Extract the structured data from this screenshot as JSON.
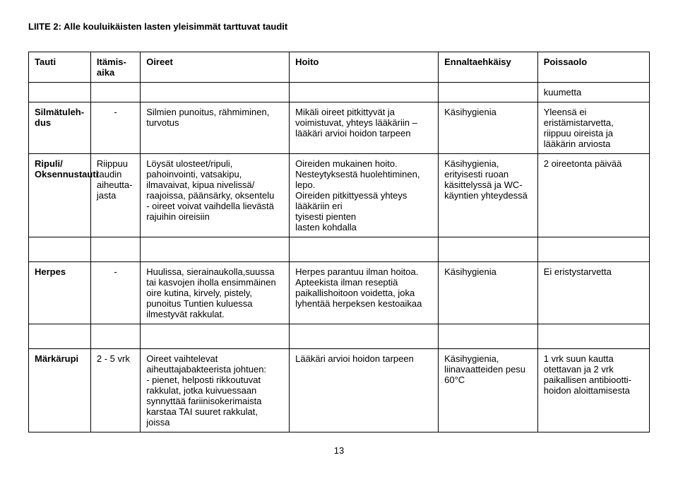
{
  "title": "LIITE 2: Alle kouluikäisten lasten yleisimmät tarttuvat taudit",
  "headers": {
    "c1": "Tauti",
    "c2": "Itämis-aika",
    "c3": "Oireet",
    "c4": "Hoito",
    "c5": "Ennaltaehkäisy",
    "c6": "Poissaolo"
  },
  "kuumetta": "kuumetta",
  "rows": {
    "r1": {
      "c1": "Silmätuleh-dus",
      "c2": "-",
      "c3": "Silmien punoitus, rähmiminen, turvotus",
      "c4": "Mikäli oireet pitkittyvät ja voimistuvat, yhteys lääkäriin – lääkäri arvioi hoidon tarpeen",
      "c5": "Käsihygienia",
      "c6": "Yleensä ei eristämistarvetta, riippuu oireista ja lääkärin arviosta"
    },
    "r2": {
      "c1": "Ripuli/ Oksennustauti",
      "c2": "Riippuu taudin aiheutta-jasta",
      "c3": "Löysät ulosteet/ripuli, pahoinvointi, vatsakipu, ilmavaivat, kipua nivelissä/ raajoissa, päänsärky, oksentelu\n- oireet voivat vaihdella lievästä rajuihin oireisiin",
      "c4": "Oireiden mukainen hoito.\nNesteytyksestä huolehtiminen, lepo.\nOireiden pitkittyessä yhteys lääkäriin eri\ntyisesti pienten\nlasten kohdalla",
      "c5": "Käsihygienia, erityisesti ruoan käsittelyssä ja WC-käyntien yhteydessä",
      "c6": "2 oireetonta päivää"
    },
    "r3": {
      "c1": "Herpes",
      "c2": "-",
      "c3": "Huulissa, sierainaukolla,suussa tai kasvojen iholla  ensimmäinen oire kutina, kirvely, pistely, punoitus Tuntien kuluessa ilmestyvät rakkulat.",
      "c4": "Herpes parantuu ilman hoitoa.\nApteekista ilman reseptiä paikallishoitoon voidetta, joka lyhentää herpeksen kestoaikaa",
      "c5": "Käsihygienia",
      "c6": "Ei eristystarvetta"
    },
    "r4": {
      "c1": "Märkärupi",
      "c2": "2 - 5 vrk",
      "c3": "Oireet vaihtelevat aiheuttajabakteerista johtuen:\n- pienet, helposti rikkoutuvat rakkulat, jotka kuivuessaan synnyttää fariinisokerimaista karstaa TAI suuret rakkulat, joissa",
      "c4": "Lääkäri arvioi hoidon tarpeen",
      "c5": "Käsihygienia, liinavaatteiden pesu 60°C",
      "c6": "1 vrk suun kautta otettavan ja 2 vrk paikallisen antibiootti-hoidon aloittamisesta"
    }
  },
  "pageNumber": "13"
}
